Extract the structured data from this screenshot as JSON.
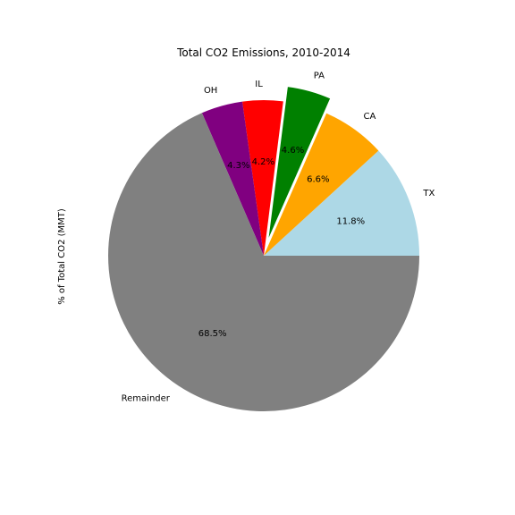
{
  "chart_data": {
    "type": "pie",
    "title": "Total CO2 Emissions, 2010-2014",
    "ylabel": "% of Total CO2 (MMT)",
    "start_angle_deg": 0,
    "direction": "counterclockwise",
    "slices": [
      {
        "label": "TX",
        "value": 11.8,
        "pct_label": "11.8%",
        "color": "#add8e6",
        "exploded": false
      },
      {
        "label": "CA",
        "value": 6.6,
        "pct_label": "6.6%",
        "color": "#ffa500",
        "exploded": false
      },
      {
        "label": "PA",
        "value": 4.6,
        "pct_label": "4.6%",
        "color": "#008000",
        "exploded": true
      },
      {
        "label": "IL",
        "value": 4.2,
        "pct_label": "4.2%",
        "color": "#ff0000",
        "exploded": false
      },
      {
        "label": "OH",
        "value": 4.3,
        "pct_label": "4.3%",
        "color": "#800080",
        "exploded": false
      },
      {
        "label": "Remainder",
        "value": 68.5,
        "pct_label": "68.5%",
        "color": "#808080",
        "exploded": false
      }
    ]
  }
}
